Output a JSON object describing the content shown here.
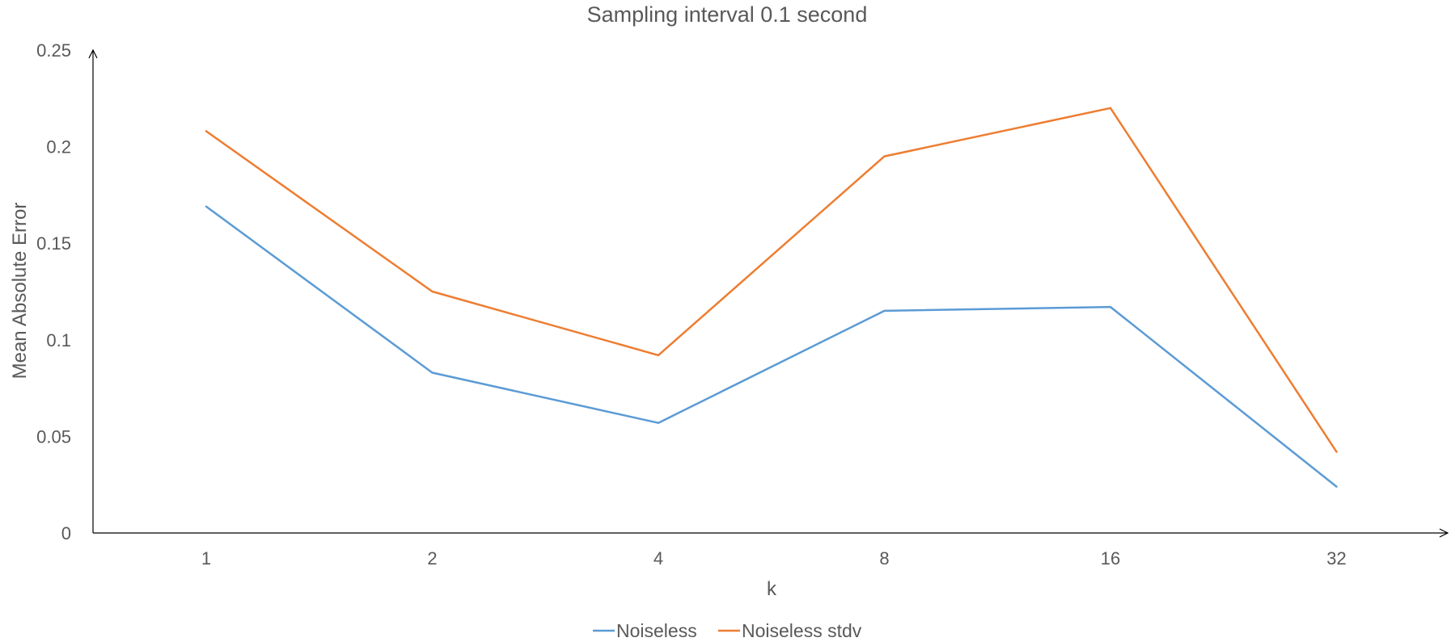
{
  "chart_data": {
    "type": "line",
    "title": "Sampling interval 0.1 second",
    "xlabel": "k",
    "ylabel": "Mean Absolute Error",
    "categories": [
      "1",
      "2",
      "4",
      "8",
      "16",
      "32"
    ],
    "ylim": [
      0,
      0.25
    ],
    "yticks": [
      0,
      0.05,
      0.1,
      0.15,
      0.2,
      0.25
    ],
    "ytick_labels": [
      "0",
      "0.05",
      "0.1",
      "0.15",
      "0.2",
      "0.25"
    ],
    "grid": false,
    "legend_position": "bottom",
    "series": [
      {
        "name": "Noiseless",
        "color": "#5B9BD5",
        "values": [
          0.169,
          0.083,
          0.057,
          0.115,
          0.117,
          0.024
        ]
      },
      {
        "name": "Noiseless stdv",
        "color": "#ED7D31",
        "values": [
          0.208,
          0.125,
          0.092,
          0.195,
          0.22,
          0.042
        ]
      }
    ]
  }
}
